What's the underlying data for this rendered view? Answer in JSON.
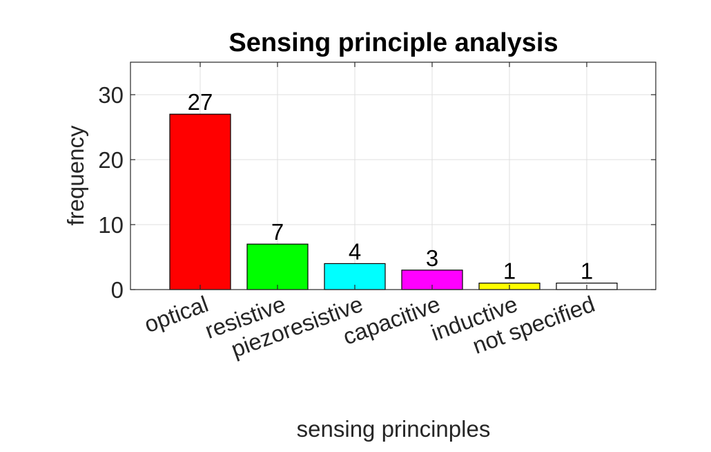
{
  "chart_data": {
    "type": "bar",
    "title": "Sensing principle analysis",
    "xlabel": "sensing princinples",
    "ylabel": "frequency",
    "categories": [
      "optical",
      "resistive",
      "piezoresistive",
      "capacitive",
      "inductive",
      "not specified"
    ],
    "values": [
      27,
      7,
      4,
      3,
      1,
      1
    ],
    "colors": [
      "#ff0000",
      "#00ff00",
      "#00ffff",
      "#ff00ff",
      "#ffff00",
      "#ffffff"
    ],
    "ylim": [
      0,
      35
    ],
    "yticks": [
      0,
      10,
      20,
      30
    ],
    "grid": true,
    "data_labels": [
      "27",
      "7",
      "4",
      "3",
      "1",
      "1"
    ]
  }
}
